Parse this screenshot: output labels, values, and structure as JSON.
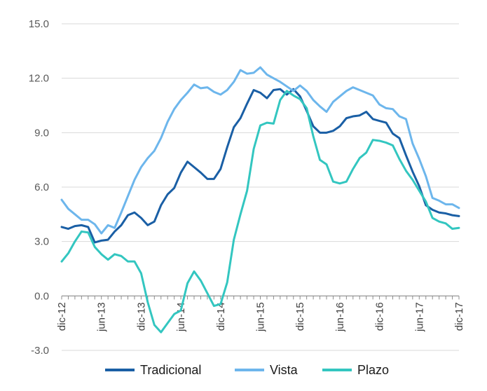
{
  "chart_data": {
    "type": "line",
    "title": "",
    "xlabel": "",
    "ylabel": "",
    "ylim": [
      -3.0,
      15.0
    ],
    "yticks": [
      15.0,
      12.0,
      9.0,
      6.0,
      3.0,
      0.0,
      -3.0
    ],
    "ytick_labels": [
      "15.0",
      "12.0",
      "9.0",
      "6.0",
      "3.0",
      "0.0",
      "-3.0"
    ],
    "grid": "horizontal",
    "legend_position": "bottom",
    "x": [
      "dic-12",
      "ene-13",
      "feb-13",
      "mar-13",
      "abr-13",
      "may-13",
      "jun-13",
      "jul-13",
      "ago-13",
      "sep-13",
      "oct-13",
      "nov-13",
      "dic-13",
      "ene-14",
      "feb-14",
      "mar-14",
      "abr-14",
      "may-14",
      "jun-14",
      "jul-14",
      "ago-14",
      "sep-14",
      "oct-14",
      "nov-14",
      "dic-14",
      "ene-15",
      "feb-15",
      "mar-15",
      "abr-15",
      "may-15",
      "jun-15",
      "jul-15",
      "ago-15",
      "sep-15",
      "oct-15",
      "nov-15",
      "dic-15",
      "ene-16",
      "feb-16",
      "mar-16",
      "abr-16",
      "may-16",
      "jun-16",
      "jul-16",
      "ago-16",
      "sep-16",
      "oct-16",
      "nov-16",
      "dic-16",
      "ene-17",
      "feb-17",
      "mar-17",
      "abr-17",
      "may-17",
      "jun-17",
      "jul-17",
      "ago-17",
      "sep-17",
      "oct-17",
      "nov-17",
      "dic-17"
    ],
    "x_tick_labels": [
      {
        "index": 0,
        "label": "dic-12"
      },
      {
        "index": 6,
        "label": "jun-13"
      },
      {
        "index": 12,
        "label": "dic-13"
      },
      {
        "index": 18,
        "label": "jun-14"
      },
      {
        "index": 24,
        "label": "dic-14"
      },
      {
        "index": 30,
        "label": "jun-15"
      },
      {
        "index": 36,
        "label": "dic-15"
      },
      {
        "index": 42,
        "label": "jun-16"
      },
      {
        "index": 48,
        "label": "dic-16"
      },
      {
        "index": 54,
        "label": "jun-17"
      },
      {
        "index": 60,
        "label": "dic-17"
      }
    ],
    "series": [
      {
        "name": "Tradicional",
        "color": "#1a5fa5",
        "values": [
          3.8,
          3.7,
          3.85,
          3.9,
          3.8,
          2.95,
          3.05,
          3.1,
          3.55,
          3.9,
          4.45,
          4.6,
          4.3,
          3.9,
          4.1,
          5.0,
          5.6,
          5.95,
          6.8,
          7.4,
          7.1,
          6.8,
          6.45,
          6.45,
          7.0,
          8.2,
          9.3,
          9.8,
          10.6,
          11.35,
          11.2,
          10.9,
          11.35,
          11.4,
          11.1,
          11.4,
          11.0,
          10.2,
          9.35,
          9.0,
          9.0,
          9.1,
          9.35,
          9.8,
          9.9,
          9.95,
          10.15,
          9.75,
          9.65,
          9.55,
          8.95,
          8.7,
          7.75,
          6.85,
          6.05,
          5.0,
          4.75,
          4.6,
          4.55,
          4.45,
          4.4
        ]
      },
      {
        "name": "Vista",
        "color": "#6db6ec",
        "values": [
          5.3,
          4.8,
          4.5,
          4.2,
          4.2,
          3.95,
          3.45,
          3.9,
          3.75,
          4.6,
          5.5,
          6.4,
          7.1,
          7.6,
          8.0,
          8.7,
          9.6,
          10.3,
          10.8,
          11.2,
          11.65,
          11.45,
          11.5,
          11.25,
          11.1,
          11.35,
          11.8,
          12.45,
          12.25,
          12.3,
          12.6,
          12.2,
          12.0,
          11.8,
          11.55,
          11.3,
          11.6,
          11.3,
          10.8,
          10.45,
          10.15,
          10.7,
          11.0,
          11.3,
          11.5,
          11.35,
          11.2,
          11.05,
          10.55,
          10.35,
          10.3,
          9.9,
          9.75,
          8.4,
          7.55,
          6.6,
          5.4,
          5.25,
          5.05,
          5.05,
          4.85
        ]
      },
      {
        "name": "Plazo",
        "color": "#33c6c0",
        "values": [
          1.9,
          2.35,
          3.0,
          3.55,
          3.5,
          2.7,
          2.3,
          2.0,
          2.3,
          2.2,
          1.9,
          1.9,
          1.25,
          -0.35,
          -1.6,
          -2.0,
          -1.5,
          -1.0,
          -0.8,
          0.7,
          1.35,
          0.85,
          0.15,
          -0.55,
          -0.45,
          0.75,
          3.1,
          4.5,
          5.8,
          8.1,
          9.4,
          9.55,
          9.5,
          10.8,
          11.3,
          11.05,
          10.85,
          10.35,
          8.8,
          7.5,
          7.25,
          6.3,
          6.2,
          6.3,
          7.0,
          7.6,
          7.9,
          8.6,
          8.55,
          8.45,
          8.3,
          7.55,
          6.9,
          6.4,
          5.8,
          5.2,
          4.3,
          4.1,
          4.0,
          3.7,
          3.75
        ]
      }
    ]
  }
}
